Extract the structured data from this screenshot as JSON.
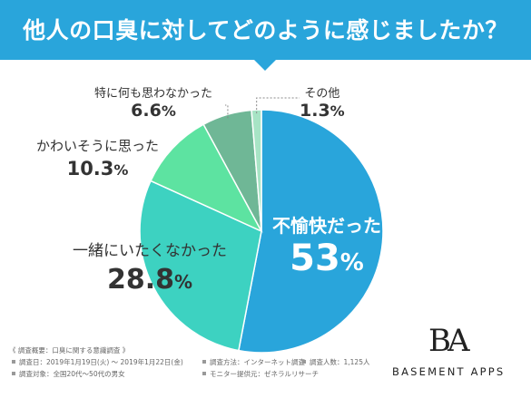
{
  "title": "他人の口臭に対してどのように感じましたか？",
  "colors": {
    "banner": "#29A5DB",
    "slice_1": "#29A5DB",
    "slice_2": "#3DD2C1",
    "slice_3": "#5DE3A1",
    "slice_4": "#6FB796",
    "slice_5": "#A7E4C5"
  },
  "chart_data": {
    "type": "pie",
    "title": "他人の口臭に対してどのように感じましたか？",
    "start": "12 o'clock",
    "direction": "clockwise",
    "slices": [
      {
        "label": "不愉快だった",
        "value": 53,
        "value_text": "53",
        "unit": "%"
      },
      {
        "label": "一緒にいたくなかった",
        "value": 28.8,
        "value_text": "28.8",
        "unit": "%"
      },
      {
        "label": "かわいそうに思った",
        "value": 10.3,
        "value_text": "10.3",
        "unit": "%"
      },
      {
        "label": "特に何も思わなかった",
        "value": 6.6,
        "value_text": "6.6",
        "unit": "%"
      },
      {
        "label": "その他",
        "value": 1.3,
        "value_text": "1.3",
        "unit": "%"
      }
    ]
  },
  "survey": {
    "heading": "《 調査概要：口臭に関する意識調査 》",
    "period": "調査日：2019年1月19日(火) ～ 2019年1月22日(金)",
    "method": "調査方法：インターネット調査",
    "respondents": "調査人数：1,125人",
    "target": "調査対象：全国20代～50代の男女",
    "provider": "モニター提供元：ゼネラルリサーチ"
  },
  "logo": {
    "mark": "BA",
    "text": "BASEMENT APPS"
  }
}
